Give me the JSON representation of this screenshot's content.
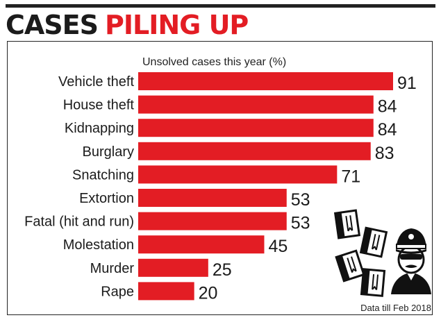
{
  "header": {
    "title_part1": "CASES",
    "title_part2": "PILING UP"
  },
  "footnote": "Data till Feb 2018",
  "colors": {
    "bar": "#e31d24",
    "title_dark": "#1b1b1b",
    "title_red": "#e31d24"
  },
  "illustration": {
    "icons": [
      "case-files-icon",
      "police-officer-icon"
    ]
  },
  "chart_data": {
    "type": "bar",
    "orientation": "horizontal",
    "title": "Unsolved cases this year (%)",
    "categories": [
      "Vehicle theft",
      "House theft",
      "Kidnapping",
      "Burglary",
      "Snatching",
      "Extortion",
      "Fatal (hit and run)",
      "Molestation",
      "Murder",
      "Rape"
    ],
    "values": [
      91,
      84,
      84,
      83,
      71,
      53,
      53,
      45,
      25,
      20
    ],
    "xlim": [
      0,
      91
    ],
    "grid": false,
    "data_labels": true
  }
}
